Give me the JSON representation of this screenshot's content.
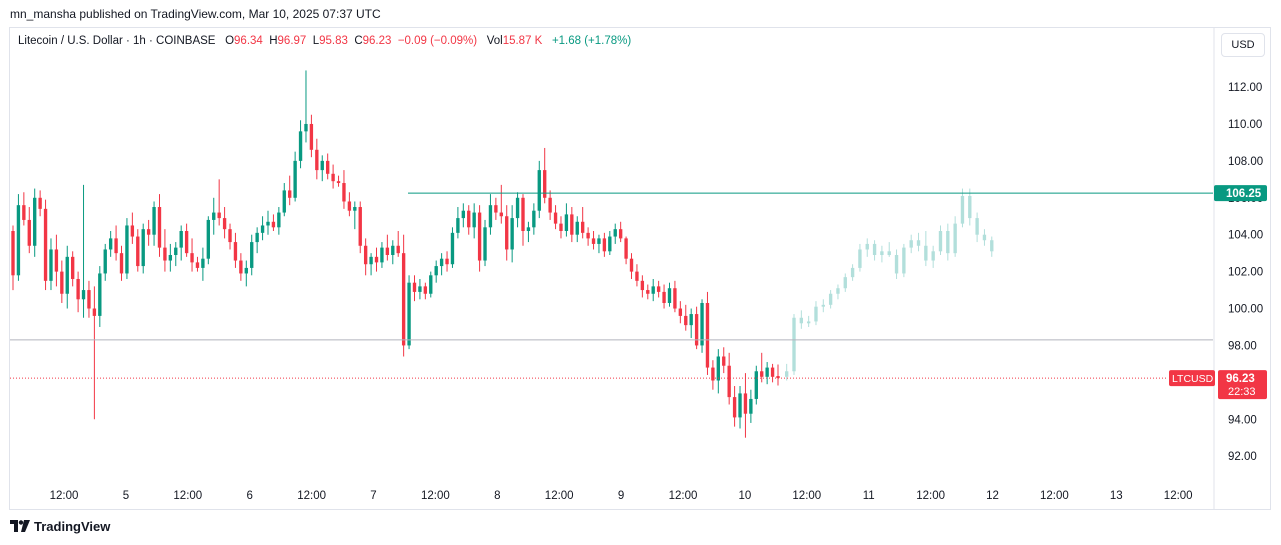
{
  "header": {
    "published": "mn_mansha published on TradingView.com, Mar 10, 2025 07:37 UTC"
  },
  "legend": {
    "symbol": "Litecoin / U.S. Dollar · 1h · COINBASE",
    "o_label": "O",
    "o_value": "96.34",
    "h_label": "H",
    "h_value": "96.97",
    "l_label": "L",
    "l_value": "95.83",
    "c_label": "C",
    "c_value": "96.23",
    "change": "−0.09 (−0.09%)",
    "vol_label": "Vol",
    "vol_value": "15.87 K",
    "vol_change": "+1.68 (+1.78%)"
  },
  "currency_button": "USD",
  "footer": {
    "brand": "TradingView"
  },
  "colors": {
    "up": "#089981",
    "down": "#f23645",
    "line": "#089981",
    "projection": "#b2dfdb",
    "support": "#b2b5be"
  },
  "chart_data": {
    "type": "candlestick",
    "ylim": [
      90.6,
      115.2
    ],
    "yticks": [
      "112.00",
      "110.00",
      "108.00",
      "106.00",
      "104.00",
      "102.00",
      "100.00",
      "98.00",
      "96.00",
      "94.00",
      "92.00"
    ],
    "xticks": [
      "12:00",
      "5",
      "12:00",
      "6",
      "12:00",
      "7",
      "12:00",
      "8",
      "12:00",
      "9",
      "12:00",
      "10",
      "12:00",
      "11",
      "12:00",
      "12",
      "12:00",
      "13",
      "12:00"
    ],
    "level_line": {
      "value": 106.25,
      "label": "106.25"
    },
    "support_line": {
      "value": 98.3
    },
    "current_price": {
      "symbol": "LTCUSD",
      "value": "96.23",
      "countdown": "22:33"
    },
    "candles": [
      [
        104.2,
        104.5,
        101,
        101.8
      ],
      [
        101.8,
        106.2,
        101.5,
        105.6
      ],
      [
        105.6,
        106.3,
        104.5,
        104.8
      ],
      [
        104.8,
        105.5,
        103.0,
        103.4
      ],
      [
        103.4,
        106.5,
        102.8,
        106.0
      ],
      [
        106.0,
        106.4,
        105.0,
        105.4
      ],
      [
        105.4,
        105.9,
        101.0,
        101.5
      ],
      [
        101.5,
        103.8,
        101.0,
        103.2
      ],
      [
        103.2,
        104.0,
        101.2,
        102.0
      ],
      [
        102.0,
        102.6,
        100.3,
        100.8
      ],
      [
        100.8,
        103.4,
        100.0,
        102.8
      ],
      [
        102.8,
        103.1,
        101.2,
        101.6
      ],
      [
        101.6,
        102.0,
        99.8,
        100.5
      ],
      [
        100.5,
        106.7,
        99.5,
        101.0
      ],
      [
        101.0,
        101.5,
        99.5,
        100.0
      ],
      [
        100.0,
        101.2,
        94.0,
        99.6
      ],
      [
        99.6,
        102.3,
        99.0,
        101.9
      ],
      [
        101.9,
        103.5,
        101.5,
        103.2
      ],
      [
        103.2,
        104.2,
        102.8,
        103.8
      ],
      [
        103.8,
        104.5,
        102.6,
        103.0
      ],
      [
        103.0,
        103.4,
        101.5,
        101.9
      ],
      [
        101.9,
        104.9,
        101.6,
        104.5
      ],
      [
        104.5,
        105.2,
        103.5,
        103.9
      ],
      [
        103.9,
        104.3,
        102.0,
        102.3
      ],
      [
        102.3,
        104.6,
        101.9,
        104.3
      ],
      [
        104.3,
        104.8,
        103.4,
        104.0
      ],
      [
        104.0,
        105.8,
        103.4,
        105.5
      ],
      [
        105.5,
        106.2,
        102.8,
        103.3
      ],
      [
        103.3,
        104.3,
        102.0,
        102.6
      ],
      [
        102.6,
        103.5,
        102.0,
        102.9
      ],
      [
        102.9,
        103.6,
        102.3,
        103.3
      ],
      [
        103.3,
        104.5,
        102.6,
        104.2
      ],
      [
        104.2,
        104.6,
        102.8,
        103.0
      ],
      [
        103.0,
        103.8,
        102.0,
        102.5
      ],
      [
        102.5,
        102.8,
        102.0,
        102.2
      ],
      [
        102.2,
        103.3,
        101.5,
        102.7
      ],
      [
        102.7,
        105.0,
        102.4,
        104.8
      ],
      [
        104.8,
        106.0,
        104.0,
        105.2
      ],
      [
        105.2,
        107.0,
        104.5,
        104.9
      ],
      [
        104.9,
        105.5,
        103.8,
        104.3
      ],
      [
        104.3,
        104.6,
        103.2,
        103.6
      ],
      [
        103.6,
        104.1,
        102.2,
        102.6
      ],
      [
        102.6,
        103.0,
        101.5,
        101.9
      ],
      [
        101.9,
        102.6,
        101.2,
        102.2
      ],
      [
        102.2,
        104.0,
        101.8,
        103.6
      ],
      [
        103.6,
        104.4,
        103.0,
        104.1
      ],
      [
        104.1,
        105.0,
        103.7,
        104.5
      ],
      [
        104.5,
        105.3,
        104.0,
        104.7
      ],
      [
        104.7,
        105.1,
        104.2,
        104.4
      ],
      [
        104.4,
        105.5,
        104.0,
        105.2
      ],
      [
        105.2,
        106.8,
        105.0,
        106.4
      ],
      [
        106.4,
        107.2,
        105.6,
        106.0
      ],
      [
        106.0,
        108.5,
        105.8,
        108.0
      ],
      [
        108.0,
        110.2,
        107.6,
        109.6
      ],
      [
        109.6,
        112.9,
        109.0,
        110.0
      ],
      [
        110.0,
        110.5,
        108.2,
        108.6
      ],
      [
        108.6,
        109.2,
        107.0,
        107.5
      ],
      [
        107.5,
        108.3,
        106.9,
        108.0
      ],
      [
        108.0,
        108.4,
        107.0,
        107.3
      ],
      [
        107.3,
        107.8,
        106.5,
        106.9
      ],
      [
        106.9,
        107.2,
        106.6,
        106.8
      ],
      [
        106.8,
        107.5,
        105.4,
        105.8
      ],
      [
        105.8,
        106.3,
        105.0,
        105.3
      ],
      [
        105.3,
        105.8,
        104.3,
        105.5
      ],
      [
        105.5,
        105.8,
        103.0,
        103.4
      ],
      [
        103.4,
        103.8,
        101.8,
        102.4
      ],
      [
        102.4,
        103.0,
        101.8,
        102.8
      ],
      [
        102.8,
        103.3,
        102.0,
        102.5
      ],
      [
        102.5,
        103.6,
        102.2,
        103.3
      ],
      [
        103.3,
        104.0,
        102.6,
        102.9
      ],
      [
        102.9,
        103.7,
        102.4,
        103.4
      ],
      [
        103.4,
        104.2,
        102.8,
        103.0
      ],
      [
        103.0,
        104.0,
        97.4,
        98.0
      ],
      [
        98.0,
        101.8,
        97.8,
        101.4
      ],
      [
        101.4,
        101.8,
        100.4,
        100.9
      ],
      [
        100.9,
        101.6,
        100.5,
        101.2
      ],
      [
        101.2,
        101.4,
        100.5,
        100.8
      ],
      [
        100.8,
        102.0,
        100.6,
        101.8
      ],
      [
        101.8,
        102.6,
        101.4,
        102.3
      ],
      [
        102.3,
        103.0,
        101.8,
        102.7
      ],
      [
        102.7,
        103.1,
        102.0,
        102.4
      ],
      [
        102.4,
        104.4,
        102.2,
        104.1
      ],
      [
        104.1,
        105.5,
        103.8,
        104.9
      ],
      [
        104.9,
        105.7,
        104.4,
        105.3
      ],
      [
        105.3,
        105.6,
        104.0,
        104.4
      ],
      [
        104.4,
        105.7,
        103.8,
        105.2
      ],
      [
        105.2,
        105.6,
        102.0,
        102.6
      ],
      [
        102.6,
        104.8,
        102.3,
        104.4
      ],
      [
        104.4,
        106.2,
        104.0,
        105.6
      ],
      [
        105.6,
        106.0,
        104.8,
        105.2
      ],
      [
        105.2,
        106.7,
        104.6,
        105.0
      ],
      [
        105.0,
        105.6,
        102.6,
        103.2
      ],
      [
        103.2,
        105.6,
        102.5,
        104.9
      ],
      [
        104.9,
        106.3,
        104.4,
        106.0
      ],
      [
        106.0,
        106.2,
        103.4,
        104.2
      ],
      [
        104.2,
        104.7,
        103.6,
        104.4
      ],
      [
        104.4,
        105.7,
        104.0,
        105.3
      ],
      [
        105.3,
        108.0,
        104.9,
        107.5
      ],
      [
        107.5,
        108.7,
        105.7,
        106.0
      ],
      [
        106.0,
        106.4,
        104.8,
        105.2
      ],
      [
        105.2,
        105.6,
        104.3,
        104.6
      ],
      [
        104.6,
        105.0,
        103.8,
        104.2
      ],
      [
        104.2,
        105.7,
        103.9,
        105.1
      ],
      [
        105.1,
        105.5,
        103.6,
        104.0
      ],
      [
        104.0,
        105.0,
        103.6,
        104.7
      ],
      [
        104.7,
        105.5,
        103.8,
        104.1
      ],
      [
        104.1,
        104.4,
        103.4,
        103.8
      ],
      [
        103.8,
        104.2,
        103.2,
        103.5
      ],
      [
        103.5,
        104.0,
        103.0,
        103.8
      ],
      [
        103.8,
        104.1,
        102.8,
        103.1
      ],
      [
        103.1,
        104.2,
        102.9,
        103.9
      ],
      [
        103.9,
        104.6,
        103.5,
        104.3
      ],
      [
        104.3,
        104.7,
        103.6,
        103.8
      ],
      [
        103.8,
        103.9,
        102.4,
        102.7
      ],
      [
        102.7,
        103.0,
        101.6,
        102.0
      ],
      [
        102.0,
        102.4,
        101.2,
        101.5
      ],
      [
        101.5,
        101.8,
        100.6,
        101.0
      ],
      [
        101.0,
        101.3,
        100.5,
        100.8
      ],
      [
        100.8,
        101.6,
        100.4,
        101.2
      ],
      [
        101.2,
        101.5,
        100.6,
        100.9
      ],
      [
        100.9,
        101.3,
        100.0,
        100.3
      ],
      [
        100.3,
        101.4,
        100.1,
        101.1
      ],
      [
        101.1,
        101.5,
        99.8,
        100.0
      ],
      [
        100.0,
        100.4,
        99.2,
        99.6
      ],
      [
        99.6,
        100.2,
        98.8,
        99.1
      ],
      [
        99.1,
        100.0,
        98.4,
        99.7
      ],
      [
        99.7,
        100.1,
        97.8,
        98.0
      ],
      [
        98.0,
        100.5,
        97.6,
        100.3
      ],
      [
        100.3,
        100.9,
        96.4,
        96.8
      ],
      [
        96.8,
        97.2,
        95.6,
        96.1
      ],
      [
        96.1,
        97.8,
        95.4,
        97.4
      ],
      [
        97.4,
        97.9,
        96.5,
        96.9
      ],
      [
        96.9,
        97.6,
        94.8,
        95.2
      ],
      [
        95.2,
        95.8,
        93.6,
        94.1
      ],
      [
        94.1,
        95.8,
        93.5,
        95.4
      ],
      [
        95.4,
        96.5,
        93.0,
        94.3
      ],
      [
        94.3,
        95.6,
        93.8,
        95.1
      ],
      [
        95.1,
        96.9,
        94.8,
        96.6
      ],
      [
        96.6,
        97.6,
        96.0,
        96.3
      ],
      [
        96.3,
        97.1,
        95.9,
        96.8
      ],
      [
        96.8,
        97.0,
        96.0,
        96.3
      ],
      [
        96.34,
        96.97,
        95.83,
        96.23
      ]
    ],
    "projection": [
      [
        96.3,
        97.0,
        96.1,
        96.6
      ],
      [
        96.6,
        99.7,
        96.4,
        99.5
      ],
      [
        99.5,
        99.9,
        98.9,
        99.2
      ],
      [
        99.2,
        99.6,
        99.0,
        99.3
      ],
      [
        99.3,
        100.4,
        99.1,
        100.1
      ],
      [
        100.1,
        100.5,
        99.8,
        100.2
      ],
      [
        100.2,
        101.0,
        100.0,
        100.8
      ],
      [
        100.8,
        101.3,
        100.5,
        101.1
      ],
      [
        101.1,
        101.9,
        100.9,
        101.7
      ],
      [
        101.7,
        102.4,
        101.5,
        102.2
      ],
      [
        102.2,
        103.5,
        102.0,
        103.2
      ],
      [
        103.2,
        103.8,
        102.8,
        103.5
      ],
      [
        103.5,
        103.7,
        102.6,
        102.9
      ],
      [
        102.9,
        103.4,
        102.5,
        103.1
      ],
      [
        103.1,
        103.6,
        102.8,
        102.9
      ],
      [
        102.9,
        103.2,
        101.6,
        101.9
      ],
      [
        101.9,
        103.5,
        101.7,
        103.3
      ],
      [
        103.3,
        104.0,
        103.0,
        103.7
      ],
      [
        103.7,
        104.1,
        103.1,
        103.4
      ],
      [
        103.4,
        104.2,
        102.3,
        102.6
      ],
      [
        102.6,
        103.4,
        102.2,
        103.1
      ],
      [
        103.1,
        104.5,
        102.9,
        104.2
      ],
      [
        104.2,
        104.6,
        102.6,
        103.0
      ],
      [
        103.0,
        105.0,
        102.8,
        104.6
      ],
      [
        104.6,
        106.5,
        104.4,
        106.1
      ],
      [
        106.1,
        106.5,
        104.5,
        104.9
      ],
      [
        104.9,
        105.2,
        103.6,
        104.0
      ],
      [
        104.0,
        104.3,
        103.4,
        103.7
      ],
      [
        103.7,
        103.9,
        102.8,
        103.1
      ]
    ]
  }
}
